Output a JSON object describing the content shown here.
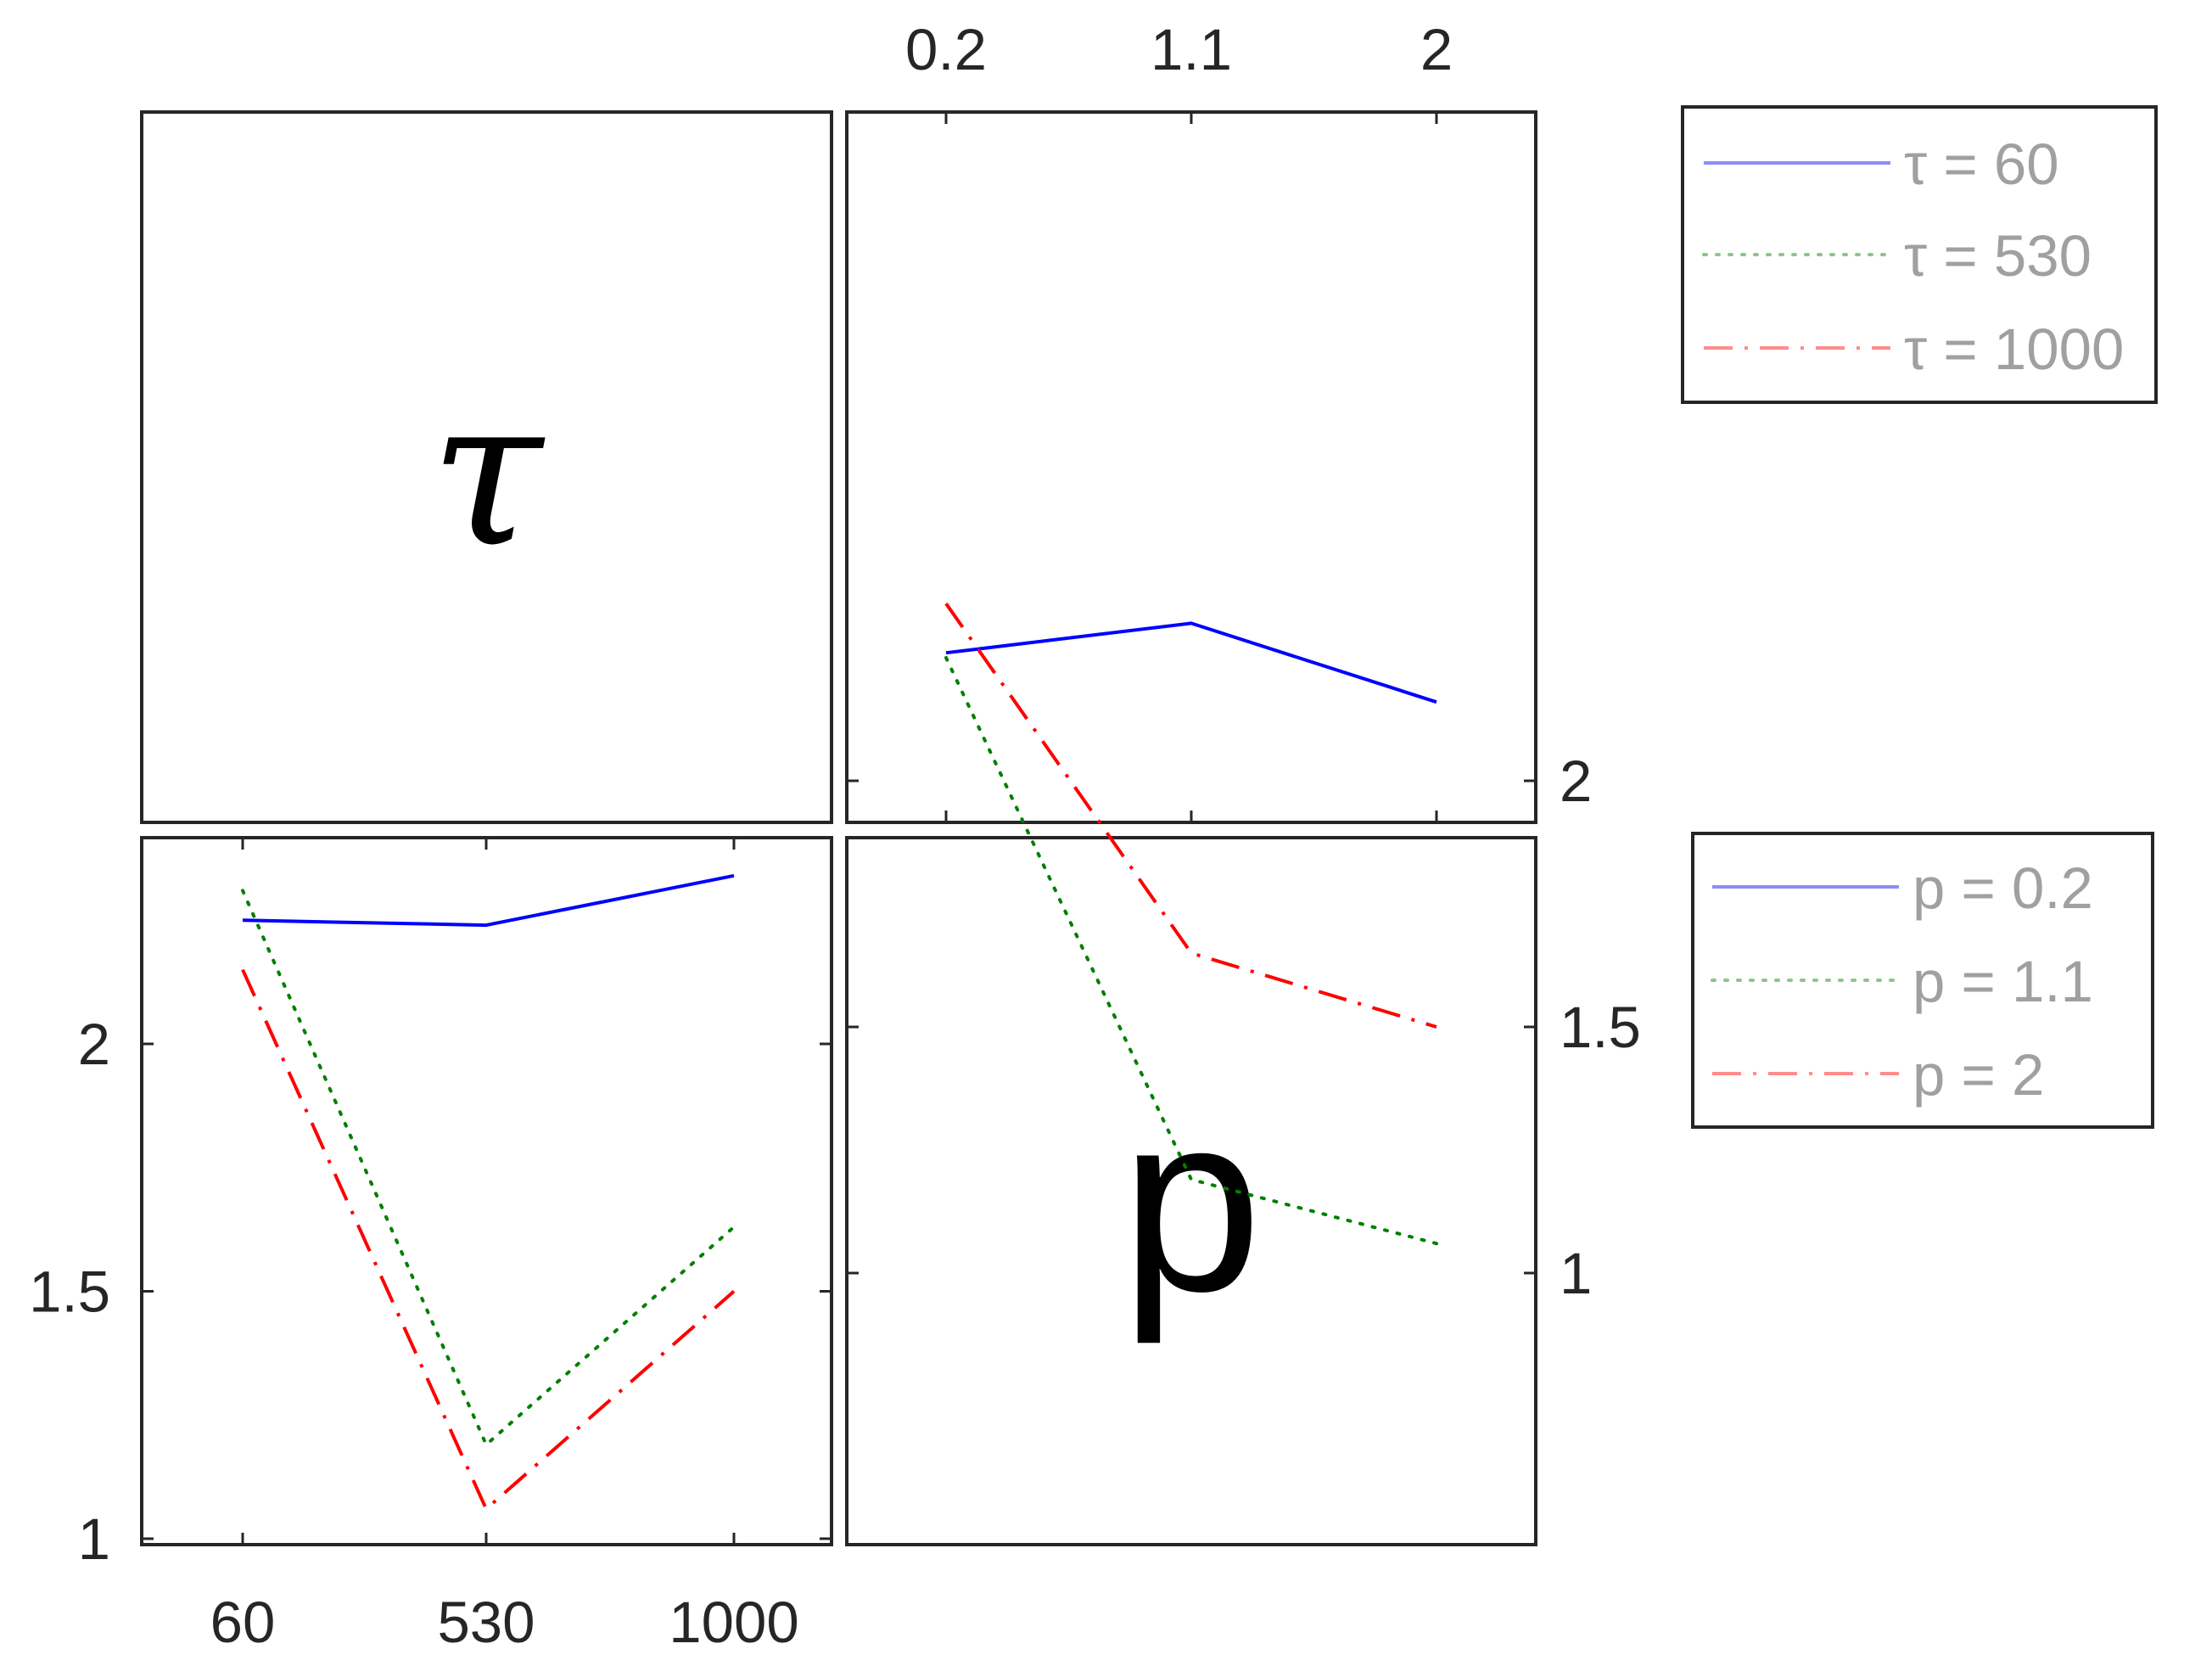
{
  "chart_data": {
    "type": "line",
    "colors": {
      "blue": "#0000ff",
      "green": "#007f00",
      "red": "#ff0000"
    },
    "panels": [
      {
        "id": "diag-tau",
        "label": "τ"
      },
      {
        "id": "p-vs-tau",
        "xticks": [
          "0.2",
          "1.1",
          "2"
        ],
        "x": [
          0.2,
          1.1,
          2
        ],
        "yticks": [
          "2",
          "1.5",
          "1"
        ],
        "ylim": [
          1,
          2.4
        ],
        "series": [
          {
            "name": "τ = 60",
            "values": [
              2.26,
              2.32,
              2.16
            ],
            "style": "solid",
            "color": "#0000ff"
          },
          {
            "name": "τ = 530",
            "values": [
              2.25,
              1.19,
              1.06
            ],
            "style": "dotted",
            "color": "#007f00"
          },
          {
            "name": "τ = 1000",
            "values": [
              2.36,
              1.65,
              1.5
            ],
            "style": "dashdot",
            "color": "#ff0000"
          }
        ]
      },
      {
        "id": "tau-vs-p",
        "xticks": [
          "60",
          "530",
          "1000"
        ],
        "x": [
          60,
          530,
          1000
        ],
        "yticks": [
          "2",
          "1.5",
          "1"
        ],
        "ylim": [
          1,
          2.4
        ],
        "series": [
          {
            "name": "p = 0.2",
            "values": [
              2.25,
              2.24,
              2.34
            ],
            "style": "solid",
            "color": "#0000ff"
          },
          {
            "name": "p = 1.1",
            "values": [
              2.31,
              1.19,
              1.63
            ],
            "style": "dotted",
            "color": "#007f00"
          },
          {
            "name": "p = 2",
            "values": [
              2.15,
              1.06,
              1.5
            ],
            "style": "dashdot",
            "color": "#ff0000"
          }
        ]
      },
      {
        "id": "diag-p",
        "label": "p"
      }
    ],
    "legends": [
      {
        "for": "p-vs-tau",
        "entries": [
          "τ = 60",
          "τ = 530",
          "τ = 1000"
        ],
        "placement": "right-top"
      },
      {
        "for": "tau-vs-p",
        "entries": [
          "p = 0.2",
          "p = 1.1",
          "p = 2"
        ],
        "placement": "right-middle"
      }
    ]
  }
}
